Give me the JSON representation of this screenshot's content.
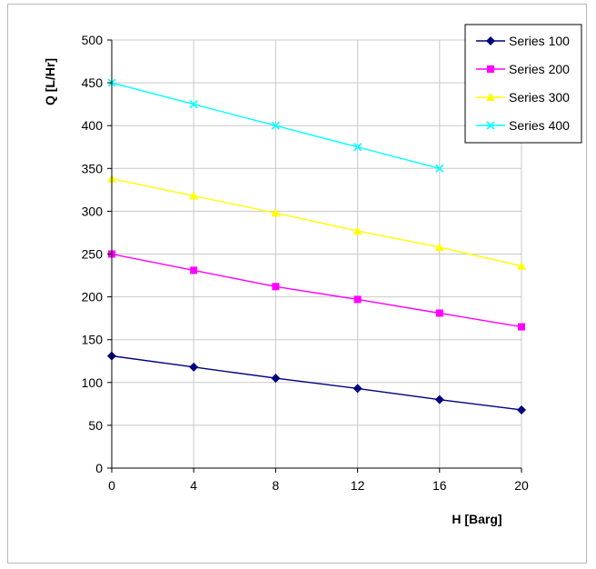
{
  "chart_data": {
    "type": "line",
    "title": "",
    "xlabel": "H [Barg]",
    "ylabel": "Q [L/Hr]",
    "xlim": [
      0,
      20
    ],
    "ylim": [
      0,
      500
    ],
    "x_ticks": [
      "0",
      "4",
      "8",
      "12",
      "16",
      "20"
    ],
    "y_ticks": [
      "0",
      "50",
      "100",
      "150",
      "200",
      "250",
      "300",
      "350",
      "400",
      "450",
      "500"
    ],
    "grid": "vertical and horizontal",
    "legend_position": "top-right",
    "series": [
      {
        "name": "Series 100",
        "color": "#000080",
        "marker": "diamond",
        "x": [
          0,
          4,
          8,
          12,
          16,
          20
        ],
        "values": [
          131,
          118,
          105,
          93,
          80,
          68
        ]
      },
      {
        "name": "Series 200",
        "color": "#ff00ff",
        "marker": "square",
        "x": [
          0,
          4,
          8,
          12,
          16,
          20
        ],
        "values": [
          250,
          231,
          212,
          197,
          181,
          165
        ]
      },
      {
        "name": "Series 300",
        "color": "#ffff00",
        "marker": "triangle",
        "x": [
          0,
          4,
          8,
          12,
          16,
          20
        ],
        "values": [
          338,
          318,
          298,
          277,
          258,
          236
        ]
      },
      {
        "name": "Series 400",
        "color": "#00ffff",
        "marker": "x",
        "x": [
          0,
          4,
          8,
          12,
          16
        ],
        "values": [
          450,
          425,
          400,
          375,
          350
        ]
      }
    ]
  }
}
